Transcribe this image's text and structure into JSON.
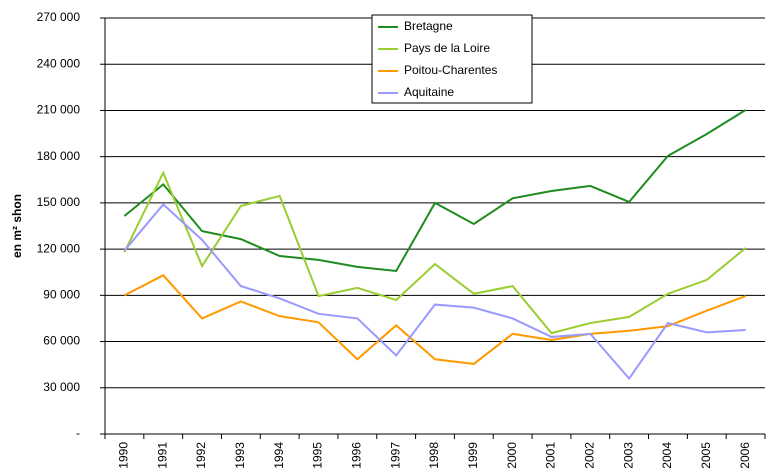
{
  "chart_data": {
    "type": "line",
    "y_label": "en m² shon",
    "categories": [
      "1990",
      "1991",
      "1992",
      "1993",
      "1994",
      "1995",
      "1996",
      "1997",
      "1998",
      "1999",
      "2000",
      "2001",
      "2002",
      "2003",
      "2004",
      "2005",
      "2006"
    ],
    "series": [
      {
        "name": "Bretagne",
        "color": "#1e8c1e",
        "values": [
          141500,
          162000,
          131700,
          126500,
          115500,
          113000,
          108500,
          105800,
          150000,
          136300,
          153000,
          157700,
          161000,
          150600,
          180500,
          194700,
          210300
        ]
      },
      {
        "name": "Pays de la Loire",
        "color": "#9acd32",
        "values": [
          118000,
          169500,
          109000,
          148000,
          154500,
          89500,
          94800,
          87000,
          110300,
          91000,
          96000,
          65500,
          72000,
          76000,
          91000,
          100000,
          120700
        ]
      },
      {
        "name": "Poitou-Charentes",
        "color": "#ff9900",
        "values": [
          90000,
          103000,
          75000,
          86000,
          76500,
          72500,
          48500,
          70500,
          48500,
          45500,
          65000,
          61000,
          65000,
          67000,
          70000,
          80000,
          89500
        ]
      },
      {
        "name": "Aquitaine",
        "color": "#9999ff",
        "values": [
          119000,
          149000,
          126000,
          96000,
          88000,
          78000,
          75000,
          51000,
          84000,
          82000,
          75000,
          63000,
          65000,
          36000,
          72000,
          66000,
          67500
        ]
      }
    ],
    "ylim": [
      0,
      270000
    ],
    "yticks": [
      {
        "value": 0,
        "label": "-"
      },
      {
        "value": 30000,
        "label": "30 000"
      },
      {
        "value": 60000,
        "label": "60 000"
      },
      {
        "value": 90000,
        "label": "90 000"
      },
      {
        "value": 120000,
        "label": "120 000"
      },
      {
        "value": 150000,
        "label": "150 000"
      },
      {
        "value": 180000,
        "label": "180 000"
      },
      {
        "value": 210000,
        "label": "210 000"
      },
      {
        "value": 240000,
        "label": "240 000"
      },
      {
        "value": 270000,
        "label": "270 000"
      }
    ],
    "grid": true,
    "legend": "top"
  }
}
